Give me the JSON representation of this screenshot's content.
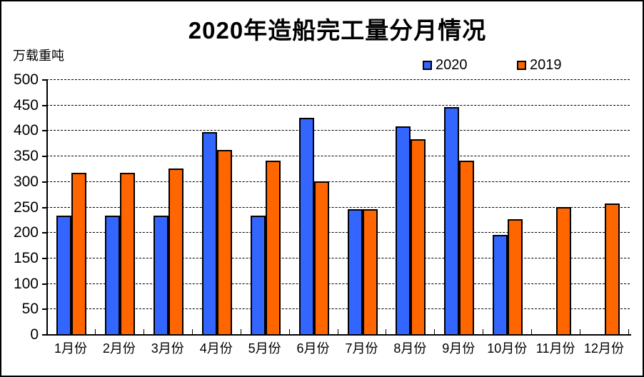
{
  "title": "2020年造船完工量分月情况",
  "y_axis_unit": "万载重吨",
  "legend": {
    "items": [
      {
        "label": "2020",
        "color": "#3366FF"
      },
      {
        "label": "2019",
        "color": "#FF6600"
      }
    ]
  },
  "chart_data": {
    "type": "bar",
    "title": "2020年造船完工量分月情况",
    "ylabel": "万载重吨",
    "categories": [
      "1月份",
      "2月份",
      "3月份",
      "4月份",
      "5月份",
      "6月份",
      "7月份",
      "8月份",
      "9月份",
      "10月份",
      "11月份",
      "12月份"
    ],
    "series": [
      {
        "name": "2020",
        "color": "#3366FF",
        "values": [
          233,
          233,
          233,
          397,
          233,
          425,
          245,
          407,
          445,
          194,
          null,
          null
        ]
      },
      {
        "name": "2019",
        "color": "#FF6600",
        "values": [
          317,
          317,
          325,
          362,
          341,
          300,
          245,
          383,
          341,
          226,
          250,
          257
        ]
      }
    ],
    "ylim": [
      0,
      500
    ],
    "ytick_step": 50,
    "grid": "horizontal-dashed",
    "legend_position": "top-right",
    "bar_border_color": "#000000",
    "background": "#FFFFFF"
  }
}
